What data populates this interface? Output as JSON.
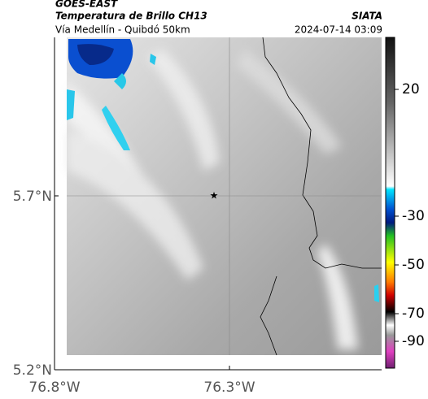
{
  "header": {
    "source": "GOES-EAST",
    "product": "Temperatura de Brillo CH13",
    "agency": "SIATA",
    "region": "Vía Medellín - Quibdó 50km",
    "timestamp": "2024-07-14 03:09"
  },
  "map": {
    "lat_labels": [
      "5.7°N",
      "5.2°N"
    ],
    "lon_labels": [
      "76.8°W",
      "76.3°W"
    ]
  },
  "colorbar": {
    "tick_labels": [
      "20",
      "-30",
      "-50",
      "-70",
      "-90"
    ]
  }
}
